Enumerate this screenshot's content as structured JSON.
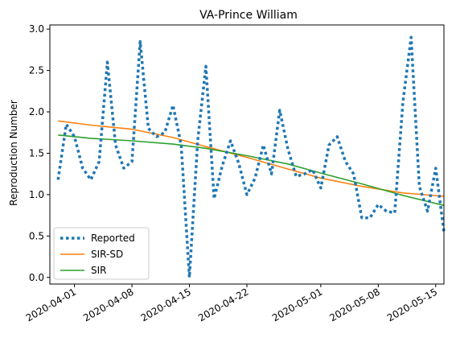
{
  "chart_data": {
    "type": "line",
    "title": "VA-Prince William",
    "xlabel": "",
    "ylabel": "Reproduction Number",
    "xlim": [
      "2020-03-29",
      "2020-05-16"
    ],
    "ylim": [
      -0.08,
      3.05
    ],
    "x_ticks": [
      "2020-04-01",
      "2020-04-08",
      "2020-04-15",
      "2020-04-22",
      "2020-05-01",
      "2020-05-08",
      "2020-05-15"
    ],
    "y_ticks": [
      "0.0",
      "0.5",
      "1.0",
      "1.5",
      "2.0",
      "2.5",
      "3.0"
    ],
    "grid": false,
    "legend_position": "lower-left",
    "series": [
      {
        "name": "Reported",
        "color": "#1f77b4",
        "style": "dotted",
        "points": [
          [
            "2020-03-30",
            1.18
          ],
          [
            "2020-03-31",
            1.85
          ],
          [
            "2020-04-01",
            1.7
          ],
          [
            "2020-04-02",
            1.32
          ],
          [
            "2020-04-03",
            1.18
          ],
          [
            "2020-04-04",
            1.4
          ],
          [
            "2020-04-05",
            2.6
          ],
          [
            "2020-04-06",
            1.6
          ],
          [
            "2020-04-07",
            1.32
          ],
          [
            "2020-04-08",
            1.4
          ],
          [
            "2020-04-09",
            2.85
          ],
          [
            "2020-04-10",
            1.8
          ],
          [
            "2020-04-11",
            1.7
          ],
          [
            "2020-04-12",
            1.75
          ],
          [
            "2020-04-13",
            2.08
          ],
          [
            "2020-04-14",
            1.6
          ],
          [
            "2020-04-15",
            0.0
          ],
          [
            "2020-04-16",
            1.65
          ],
          [
            "2020-04-17",
            2.55
          ],
          [
            "2020-04-18",
            0.95
          ],
          [
            "2020-04-19",
            1.35
          ],
          [
            "2020-04-20",
            1.65
          ],
          [
            "2020-04-21",
            1.38
          ],
          [
            "2020-04-22",
            1.0
          ],
          [
            "2020-04-23",
            1.2
          ],
          [
            "2020-04-24",
            1.6
          ],
          [
            "2020-04-25",
            1.25
          ],
          [
            "2020-04-26",
            2.02
          ],
          [
            "2020-04-27",
            1.55
          ],
          [
            "2020-04-28",
            1.22
          ],
          [
            "2020-04-29",
            1.25
          ],
          [
            "2020-04-30",
            1.3
          ],
          [
            "2020-05-01",
            1.08
          ],
          [
            "2020-05-02",
            1.6
          ],
          [
            "2020-05-03",
            1.7
          ],
          [
            "2020-05-04",
            1.4
          ],
          [
            "2020-05-05",
            1.25
          ],
          [
            "2020-05-06",
            0.72
          ],
          [
            "2020-05-07",
            0.72
          ],
          [
            "2020-05-08",
            0.88
          ],
          [
            "2020-05-09",
            0.8
          ],
          [
            "2020-05-10",
            0.78
          ],
          [
            "2020-05-11",
            2.12
          ],
          [
            "2020-05-12",
            2.9
          ],
          [
            "2020-05-13",
            1.1
          ],
          [
            "2020-05-14",
            0.8
          ],
          [
            "2020-05-15",
            1.32
          ],
          [
            "2020-05-16",
            0.55
          ]
        ]
      },
      {
        "name": "SIR-SD",
        "color": "#ff7f0e",
        "style": "solid",
        "points": [
          [
            "2020-03-30",
            1.89
          ],
          [
            "2020-04-03",
            1.84
          ],
          [
            "2020-04-08",
            1.79
          ],
          [
            "2020-04-13",
            1.69
          ],
          [
            "2020-04-17",
            1.58
          ],
          [
            "2020-04-22",
            1.45
          ],
          [
            "2020-04-27",
            1.31
          ],
          [
            "2020-05-01",
            1.2
          ],
          [
            "2020-05-06",
            1.1
          ],
          [
            "2020-05-11",
            1.02
          ],
          [
            "2020-05-16",
            0.98
          ]
        ]
      },
      {
        "name": "SIR",
        "color": "#2ca02c",
        "style": "solid",
        "points": [
          [
            "2020-03-30",
            1.72
          ],
          [
            "2020-04-03",
            1.68
          ],
          [
            "2020-04-08",
            1.65
          ],
          [
            "2020-04-13",
            1.61
          ],
          [
            "2020-04-17",
            1.56
          ],
          [
            "2020-04-22",
            1.47
          ],
          [
            "2020-04-27",
            1.37
          ],
          [
            "2020-05-01",
            1.26
          ],
          [
            "2020-05-06",
            1.13
          ],
          [
            "2020-05-11",
            0.99
          ],
          [
            "2020-05-16",
            0.87
          ]
        ]
      }
    ]
  }
}
